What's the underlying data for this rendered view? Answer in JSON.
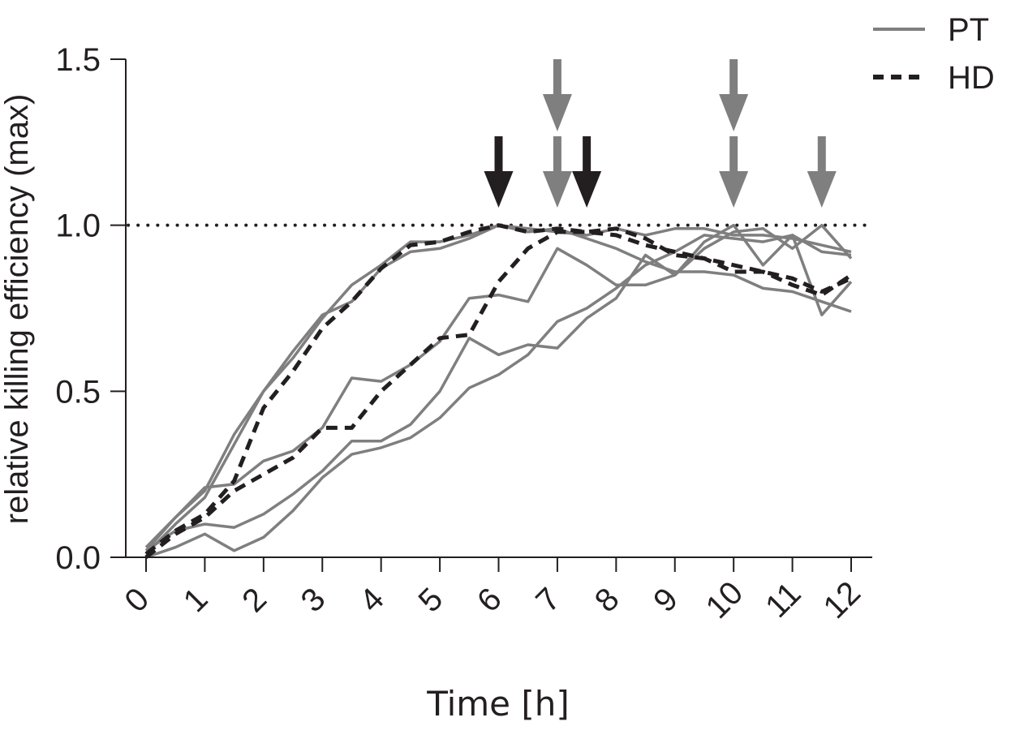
{
  "chart_data": {
    "type": "line",
    "xlabel": "Time [h]",
    "ylabel": "relative killing efficiency (max)",
    "xlim": [
      0,
      12
    ],
    "ylim": [
      0,
      1.5
    ],
    "x_ticks": [
      "0",
      "1",
      "2",
      "3",
      "4",
      "5",
      "6",
      "7",
      "8",
      "9",
      "10",
      "11",
      "12"
    ],
    "y_ticks": [
      "0.0",
      "0.5",
      "1.0",
      "1.5"
    ],
    "reference_line": {
      "y": 1.0,
      "style": "dotted"
    },
    "legend": {
      "placement": "top-right",
      "entries": [
        {
          "label": "PT",
          "style": "solid",
          "color": "#7f7f7f"
        },
        {
          "label": "HD",
          "style": "dashed",
          "color": "#231f20"
        }
      ]
    },
    "colors": {
      "PT": "#7f7f7f",
      "HD": "#231f20",
      "axis": "#231f20"
    },
    "x": [
      0,
      0.5,
      1,
      1.5,
      2,
      2.5,
      3,
      3.5,
      4,
      4.5,
      5,
      5.5,
      6,
      6.5,
      7,
      7.5,
      8,
      8.5,
      9,
      9.5,
      10,
      10.5,
      11,
      11.5,
      12
    ],
    "series": [
      {
        "group": "PT",
        "values": [
          0.02,
          0.12,
          0.2,
          0.37,
          0.5,
          0.6,
          0.72,
          0.82,
          0.88,
          0.95,
          0.95,
          0.97,
          1.0,
          0.98,
          0.99,
          0.96,
          0.93,
          0.89,
          0.86,
          0.86,
          0.85,
          0.81,
          0.8,
          0.77,
          0.74
        ]
      },
      {
        "group": "PT",
        "values": [
          0.01,
          0.1,
          0.18,
          0.34,
          0.5,
          0.62,
          0.73,
          0.77,
          0.87,
          0.92,
          0.93,
          0.96,
          1.0,
          0.99,
          0.98,
          0.97,
          0.99,
          0.97,
          0.99,
          0.99,
          0.97,
          0.97,
          0.96,
          0.94,
          0.92
        ]
      },
      {
        "group": "PT",
        "values": [
          0.03,
          0.12,
          0.21,
          0.22,
          0.29,
          0.32,
          0.39,
          0.54,
          0.53,
          0.58,
          0.65,
          0.78,
          0.79,
          0.77,
          0.93,
          0.88,
          0.82,
          0.82,
          0.85,
          0.95,
          1.0,
          0.88,
          0.97,
          0.92,
          0.91
        ]
      },
      {
        "group": "PT",
        "values": [
          0.02,
          0.08,
          0.1,
          0.09,
          0.13,
          0.19,
          0.26,
          0.35,
          0.35,
          0.4,
          0.5,
          0.66,
          0.61,
          0.64,
          0.63,
          0.72,
          0.78,
          0.91,
          0.85,
          0.93,
          0.98,
          0.99,
          0.93,
          1.0,
          0.9
        ]
      },
      {
        "group": "PT",
        "values": [
          0.0,
          0.03,
          0.07,
          0.02,
          0.06,
          0.14,
          0.24,
          0.31,
          0.33,
          0.36,
          0.42,
          0.51,
          0.55,
          0.61,
          0.71,
          0.75,
          0.81,
          0.88,
          0.92,
          0.97,
          0.96,
          0.95,
          0.97,
          0.73,
          0.83
        ]
      },
      {
        "group": "HD",
        "values": [
          0.01,
          0.08,
          0.13,
          0.23,
          0.45,
          0.56,
          0.69,
          0.77,
          0.87,
          0.94,
          0.95,
          0.98,
          1.0,
          0.98,
          0.99,
          0.98,
          0.99,
          0.96,
          0.91,
          0.9,
          0.88,
          0.86,
          0.84,
          0.8,
          0.84
        ]
      },
      {
        "group": "HD",
        "values": [
          0.0,
          0.07,
          0.12,
          0.2,
          0.25,
          0.3,
          0.39,
          0.39,
          0.5,
          0.58,
          0.66,
          0.67,
          0.83,
          0.93,
          0.98,
          0.98,
          0.97,
          0.94,
          0.92,
          0.9,
          0.86,
          0.86,
          0.82,
          0.79,
          0.85
        ]
      }
    ],
    "annotations": {
      "arrows": [
        {
          "x": 6,
          "tier": "low",
          "color": "#231f20"
        },
        {
          "x": 7,
          "tier": "high",
          "color": "#7f7f7f"
        },
        {
          "x": 7,
          "tier": "low",
          "color": "#7f7f7f"
        },
        {
          "x": 7.5,
          "tier": "low",
          "color": "#231f20"
        },
        {
          "x": 10,
          "tier": "high",
          "color": "#7f7f7f"
        },
        {
          "x": 10,
          "tier": "low",
          "color": "#7f7f7f"
        },
        {
          "x": 11.5,
          "tier": "low",
          "color": "#7f7f7f"
        }
      ]
    }
  }
}
